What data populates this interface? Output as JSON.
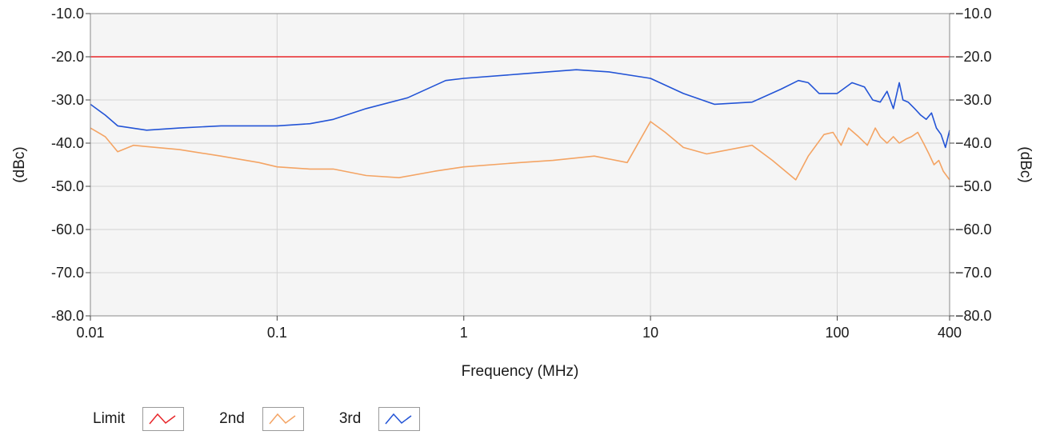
{
  "chart_data": {
    "type": "line",
    "xlabel": "Frequency (MHz)",
    "ylabel_left": "(dBc)",
    "ylabel_right": "(dBc)",
    "x_scale": "log",
    "xlim": [
      0.01,
      400
    ],
    "ylim": [
      -80,
      -10
    ],
    "x_ticks": [
      {
        "value": 0.01,
        "label": "0.01"
      },
      {
        "value": 0.1,
        "label": "0.1"
      },
      {
        "value": 1,
        "label": "1"
      },
      {
        "value": 10,
        "label": "10"
      },
      {
        "value": 100,
        "label": "100"
      },
      {
        "value": 400,
        "label": "400"
      }
    ],
    "y_ticks": [
      {
        "value": -10,
        "label": "-10.0"
      },
      {
        "value": -20,
        "label": "-20.0"
      },
      {
        "value": -30,
        "label": "-30.0"
      },
      {
        "value": -40,
        "label": "-40.0"
      },
      {
        "value": -50,
        "label": "-50.0"
      },
      {
        "value": -60,
        "label": "-60.0"
      },
      {
        "value": -70,
        "label": "-70.0"
      },
      {
        "value": -80,
        "label": "-80.0"
      }
    ],
    "grid": true,
    "legend_position": "bottom",
    "series": [
      {
        "name": "Limit",
        "color": "#e8262a",
        "points": [
          [
            0.01,
            -20
          ],
          [
            400,
            -20
          ]
        ]
      },
      {
        "name": "2nd",
        "color": "#f4a464",
        "points": [
          [
            0.01,
            -36.5
          ],
          [
            0.012,
            -38.5
          ],
          [
            0.014,
            -42
          ],
          [
            0.017,
            -40.5
          ],
          [
            0.02,
            -40.8
          ],
          [
            0.03,
            -41.5
          ],
          [
            0.05,
            -43
          ],
          [
            0.08,
            -44.5
          ],
          [
            0.1,
            -45.5
          ],
          [
            0.15,
            -46
          ],
          [
            0.2,
            -46
          ],
          [
            0.3,
            -47.5
          ],
          [
            0.45,
            -48
          ],
          [
            0.7,
            -46.5
          ],
          [
            1,
            -45.5
          ],
          [
            2,
            -44.5
          ],
          [
            3,
            -44
          ],
          [
            5,
            -43
          ],
          [
            7.5,
            -44.5
          ],
          [
            10,
            -35
          ],
          [
            12,
            -37.5
          ],
          [
            15,
            -41
          ],
          [
            20,
            -42.5
          ],
          [
            35,
            -40.5
          ],
          [
            45,
            -44
          ],
          [
            60,
            -48.5
          ],
          [
            70,
            -43
          ],
          [
            85,
            -38
          ],
          [
            95,
            -37.5
          ],
          [
            105,
            -40.5
          ],
          [
            115,
            -36.5
          ],
          [
            130,
            -38.5
          ],
          [
            145,
            -40.5
          ],
          [
            160,
            -36.5
          ],
          [
            170,
            -38.5
          ],
          [
            185,
            -40
          ],
          [
            200,
            -38.5
          ],
          [
            215,
            -40
          ],
          [
            235,
            -39
          ],
          [
            250,
            -38.5
          ],
          [
            270,
            -37.5
          ],
          [
            290,
            -40
          ],
          [
            310,
            -42.5
          ],
          [
            330,
            -45
          ],
          [
            350,
            -44
          ],
          [
            370,
            -46.5
          ],
          [
            400,
            -48.5
          ]
        ]
      },
      {
        "name": "3rd",
        "color": "#2354d6",
        "points": [
          [
            0.01,
            -31
          ],
          [
            0.012,
            -33.5
          ],
          [
            0.014,
            -36
          ],
          [
            0.02,
            -37
          ],
          [
            0.03,
            -36.5
          ],
          [
            0.05,
            -36
          ],
          [
            0.1,
            -36
          ],
          [
            0.15,
            -35.5
          ],
          [
            0.2,
            -34.5
          ],
          [
            0.3,
            -32
          ],
          [
            0.5,
            -29.5
          ],
          [
            0.8,
            -25.5
          ],
          [
            1,
            -25
          ],
          [
            2,
            -24
          ],
          [
            4,
            -23
          ],
          [
            6,
            -23.5
          ],
          [
            10,
            -25
          ],
          [
            15,
            -28.5
          ],
          [
            22,
            -31
          ],
          [
            35,
            -30.5
          ],
          [
            50,
            -27.5
          ],
          [
            62,
            -25.5
          ],
          [
            70,
            -26
          ],
          [
            80,
            -28.5
          ],
          [
            100,
            -28.5
          ],
          [
            120,
            -26
          ],
          [
            140,
            -27
          ],
          [
            155,
            -30
          ],
          [
            170,
            -30.5
          ],
          [
            185,
            -28
          ],
          [
            200,
            -32
          ],
          [
            215,
            -26
          ],
          [
            225,
            -30
          ],
          [
            240,
            -30.5
          ],
          [
            260,
            -32
          ],
          [
            280,
            -33.5
          ],
          [
            300,
            -34.5
          ],
          [
            320,
            -33
          ],
          [
            340,
            -36.5
          ],
          [
            360,
            -38
          ],
          [
            380,
            -41
          ],
          [
            400,
            -37
          ]
        ]
      }
    ]
  }
}
